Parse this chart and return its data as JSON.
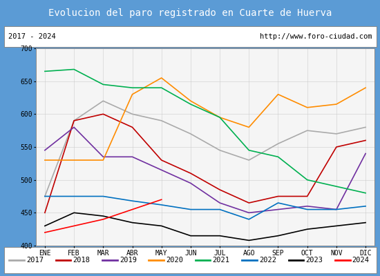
{
  "title": "Evolucion del paro registrado en Cuarte de Huerva",
  "title_color": "#ffffff",
  "title_bg": "#5b9bd5",
  "subtitle_left": "2017 - 2024",
  "subtitle_right": "http://www.foro-ciudad.com",
  "months": [
    "ENE",
    "FEB",
    "MAR",
    "ABR",
    "MAY",
    "JUN",
    "JUL",
    "AGO",
    "SEP",
    "OCT",
    "NOV",
    "DIC"
  ],
  "ylim": [
    400,
    700
  ],
  "yticks": [
    400,
    450,
    500,
    550,
    600,
    650,
    700
  ],
  "series": {
    "2017": {
      "color": "#aaaaaa",
      "data": [
        475,
        590,
        620,
        600,
        590,
        570,
        545,
        530,
        555,
        575,
        570,
        580
      ]
    },
    "2018": {
      "color": "#c00000",
      "data": [
        450,
        590,
        600,
        580,
        530,
        510,
        485,
        465,
        475,
        475,
        550,
        560
      ]
    },
    "2019": {
      "color": "#7030a0",
      "data": [
        545,
        580,
        535,
        535,
        515,
        495,
        465,
        450,
        455,
        460,
        455,
        540
      ]
    },
    "2020": {
      "color": "#ff8c00",
      "data": [
        530,
        530,
        530,
        630,
        655,
        620,
        595,
        580,
        630,
        610,
        615,
        640
      ]
    },
    "2021": {
      "color": "#00b050",
      "data": [
        665,
        668,
        645,
        640,
        640,
        615,
        595,
        545,
        535,
        500,
        490,
        480
      ]
    },
    "2022": {
      "color": "#0070c0",
      "data": [
        475,
        475,
        475,
        468,
        462,
        455,
        455,
        440,
        465,
        455,
        455,
        460
      ]
    },
    "2023": {
      "color": "#000000",
      "data": [
        430,
        450,
        445,
        435,
        430,
        415,
        415,
        408,
        415,
        425,
        430,
        435
      ]
    },
    "2024": {
      "color": "#ff0000",
      "data": [
        420,
        430,
        440,
        455,
        470,
        null,
        null,
        null,
        null,
        null,
        null,
        null
      ]
    }
  },
  "plot_bg": "#f5f5f5",
  "grid_color": "#cccccc",
  "border_color": "#888888",
  "title_fontsize": 10,
  "tick_fontsize": 7,
  "legend_fontsize": 7.5
}
